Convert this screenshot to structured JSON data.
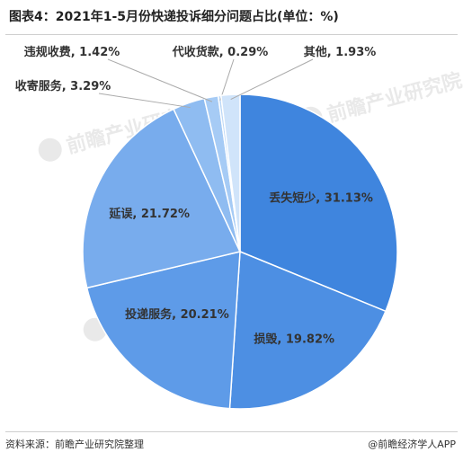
{
  "title": "图表4：2021年1-5月份快递投诉细分问题占比(单位：%)",
  "source": "资料来源：前瞻产业研究院整理",
  "brand": "@前瞻经济学人APP",
  "watermark": "前瞻产业研究院",
  "chart_data": {
    "type": "pie",
    "unit": "%",
    "slices": [
      {
        "label": "丢失短少",
        "value": 31.13,
        "display": "丢失短少, 31.13%",
        "color": "#3f85de"
      },
      {
        "label": "损毁",
        "value": 19.82,
        "display": "损毁, 19.82%",
        "color": "#4d8fe3"
      },
      {
        "label": "投递服务",
        "value": 20.21,
        "display": "投递服务, 20.21%",
        "color": "#5e9be8"
      },
      {
        "label": "延误",
        "value": 21.72,
        "display": "延误, 21.72%",
        "color": "#78aced"
      },
      {
        "label": "收寄服务",
        "value": 3.29,
        "display": "收寄服务, 3.29%",
        "color": "#8fbcf1"
      },
      {
        "label": "违规收费",
        "value": 1.42,
        "display": "违规收费, 1.42%",
        "color": "#a6cbf5"
      },
      {
        "label": "代收货款",
        "value": 0.29,
        "display": "代收货款, 0.29%",
        "color": "#bcd8f7"
      },
      {
        "label": "其他",
        "value": 1.93,
        "display": "其他, 1.93%",
        "color": "#d0e4fa"
      }
    ]
  }
}
